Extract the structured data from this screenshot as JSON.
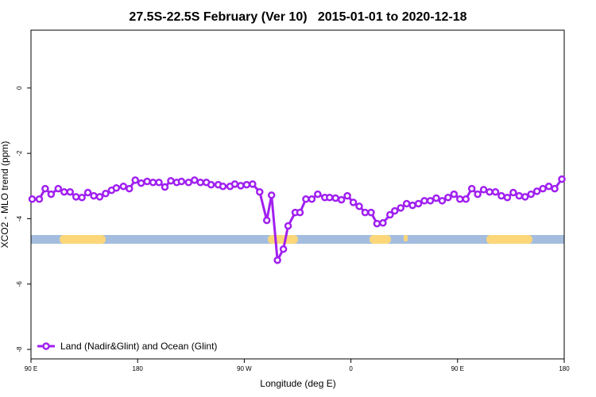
{
  "chart_data": {
    "type": "line",
    "title": "27.5S-22.5S February (Ver 10)   2015-01-01 to 2020-12-18",
    "x_label": "Longitude (deg E)",
    "y_label": "XCO2 - MLO trend (ppm)",
    "xlim": [
      90,
      540
    ],
    "xticks": [
      {
        "value": 90,
        "label": "90 E"
      },
      180,
      {
        "value": 270,
        "label": "90 W"
      },
      {
        "value": 360,
        "label": "0"
      },
      {
        "value": 450,
        "label": "90 E"
      },
      {
        "value": 540,
        "label": "180"
      }
    ],
    "ylim": [
      -8.29,
      1.77
    ],
    "yticks": [
      0,
      -2,
      -4,
      -6,
      -8
    ],
    "legend_position": "bottom-left",
    "x": [
      91,
      97,
      102,
      107,
      113,
      118,
      123,
      128,
      133,
      138,
      143,
      148,
      153,
      158,
      162,
      168,
      173,
      178,
      183,
      188,
      193,
      198,
      203,
      208,
      213,
      217,
      223,
      228,
      233,
      238,
      242,
      248,
      252,
      258,
      262,
      267,
      272,
      277,
      283,
      289,
      293,
      298,
      303,
      307,
      313,
      317,
      322,
      327,
      332,
      338,
      342,
      347,
      352,
      357,
      362,
      367,
      372,
      377,
      382,
      387,
      393,
      397,
      402,
      407,
      412,
      417,
      422,
      427,
      432,
      437,
      442,
      447,
      452,
      457,
      462,
      467,
      472,
      477,
      482,
      487,
      492,
      497,
      502,
      507,
      512,
      517,
      522,
      527,
      532,
      538
    ],
    "series": [
      {
        "name": "Land (Nadir&Glint) and Ocean (Glint)",
        "color": "#a020f0",
        "values": [
          -3.4,
          -3.4,
          -3.08,
          -3.25,
          -3.08,
          -3.18,
          -3.18,
          -3.33,
          -3.35,
          -3.2,
          -3.3,
          -3.33,
          -3.23,
          -3.13,
          -3.06,
          -3.01,
          -3.08,
          -2.82,
          -2.91,
          -2.86,
          -2.89,
          -2.89,
          -3.03,
          -2.84,
          -2.89,
          -2.86,
          -2.89,
          -2.82,
          -2.89,
          -2.89,
          -2.96,
          -2.96,
          -3.01,
          -3.01,
          -2.94,
          -2.99,
          -2.96,
          -2.94,
          -3.18,
          -4.05,
          -3.28,
          -5.27,
          -4.93,
          -4.22,
          -3.81,
          -3.81,
          -3.4,
          -3.4,
          -3.25,
          -3.35,
          -3.35,
          -3.37,
          -3.42,
          -3.3,
          -3.5,
          -3.62,
          -3.81,
          -3.81,
          -4.15,
          -4.13,
          -3.88,
          -3.76,
          -3.67,
          -3.54,
          -3.59,
          -3.54,
          -3.45,
          -3.45,
          -3.37,
          -3.45,
          -3.35,
          -3.25,
          -3.4,
          -3.4,
          -3.08,
          -3.25,
          -3.11,
          -3.18,
          -3.18,
          -3.3,
          -3.35,
          -3.2,
          -3.3,
          -3.33,
          -3.25,
          -3.16,
          -3.08,
          -3.01,
          -3.08,
          -2.79
        ]
      }
    ]
  }
}
